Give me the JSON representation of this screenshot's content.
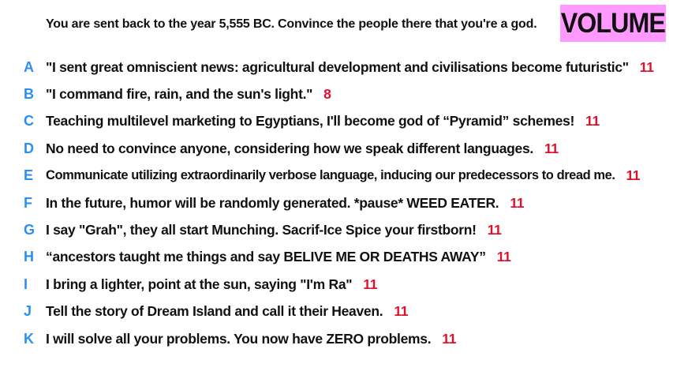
{
  "prompt": "You are sent back to the year 5,555 BC. Convince the people there that you're a god.",
  "badge": "VOLUME",
  "colors": {
    "badge_bg": "#ff99ff",
    "letter": "#2a8ff0",
    "count": "#e0102a",
    "text": "#111111"
  },
  "answers": [
    {
      "letter": "A",
      "text": "\"I sent great omniscient news: agricultural development and civilisations become futuristic\"",
      "count": "11"
    },
    {
      "letter": "B",
      "text": "\"I command fire, rain, and the sun's light.\"",
      "count": "8"
    },
    {
      "letter": "C",
      "text": "Teaching multilevel marketing to Egyptians, I'll become god of “Pyramid” schemes!",
      "count": "11"
    },
    {
      "letter": "D",
      "text": "No need to convince anyone, considering how we speak different languages.",
      "count": "11"
    },
    {
      "letter": "E",
      "text": "Communicate utilizing extraordinarily verbose language, inducing our predecessors to dread me.",
      "count": "11"
    },
    {
      "letter": "F",
      "text": "In the future, humor will be randomly generated. *pause* WEED EATER.",
      "count": "11"
    },
    {
      "letter": "G",
      "text": "I say \"Grah\", they all start Munching. Sacrif-Ice Spice your firstborn!",
      "count": "11"
    },
    {
      "letter": "H",
      "text": "“ancestors taught me things and say BELIVE ME OR DEATHS AWAY”",
      "count": "11"
    },
    {
      "letter": "I",
      "text": "I bring a lighter, point at the sun, saying \"I'm Ra\"",
      "count": "11"
    },
    {
      "letter": "J",
      "text": "Tell the story of Dream Island and call it their Heaven.",
      "count": "11"
    },
    {
      "letter": "K",
      "text": "I will solve all your problems. You now have ZERO problems.",
      "count": "11"
    }
  ]
}
